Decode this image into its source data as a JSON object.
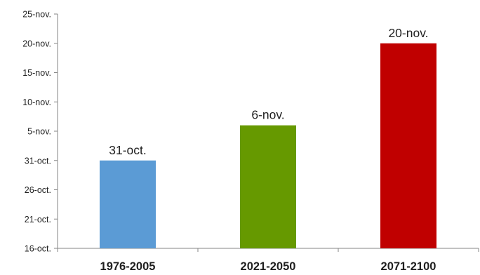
{
  "chart_data": {
    "type": "bar",
    "categories": [
      "1976-2005",
      "2021-2050",
      "2071-2100"
    ],
    "values": [
      15,
      21,
      35
    ],
    "data_labels": [
      "31-oct.",
      "6-nov.",
      "20-nov."
    ],
    "bar_colors": [
      "#5b9bd5",
      "#669900",
      "#c00000"
    ],
    "y_ticks": [
      {
        "value": 0,
        "label": "16-oct."
      },
      {
        "value": 5,
        "label": "21-oct."
      },
      {
        "value": 10,
        "label": "26-oct."
      },
      {
        "value": 15,
        "label": "31-oct."
      },
      {
        "value": 20,
        "label": "5-nov."
      },
      {
        "value": 25,
        "label": "10-nov."
      },
      {
        "value": 30,
        "label": "15-nov."
      },
      {
        "value": 35,
        "label": "20-nov."
      },
      {
        "value": 40,
        "label": "25-nov."
      }
    ],
    "ylim": [
      0,
      40
    ],
    "title": "",
    "xlabel": "",
    "ylabel": "",
    "grid": false,
    "legend": "none",
    "axis_color": "#868686"
  }
}
